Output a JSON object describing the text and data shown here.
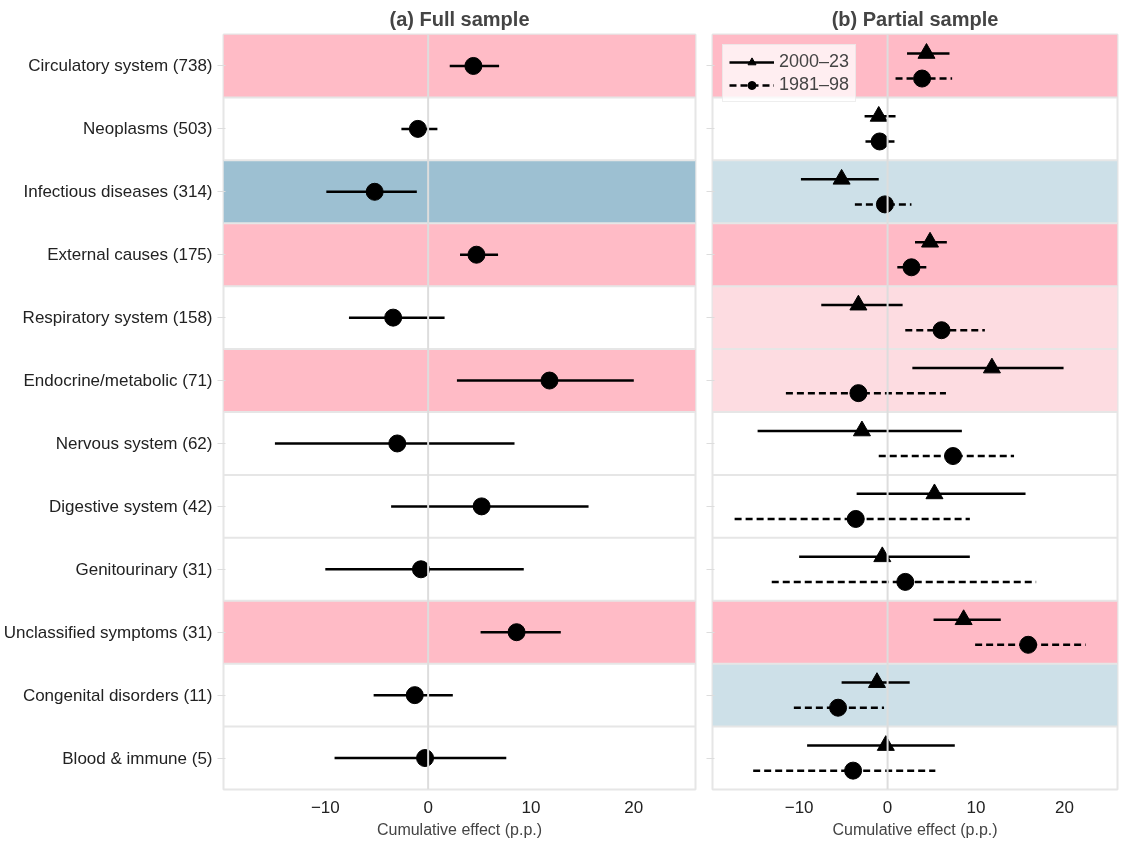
{
  "chart_data": [
    {
      "type": "scatter",
      "title": "(a) Full sample",
      "xlabel": "Cumulative effect (p.p.)",
      "orientation": "horizontal",
      "categories": [
        "Circulatory system (738)",
        "Neoplasms (503)",
        "Infectious diseases (314)",
        "External causes (175)",
        "Respiratory system (158)",
        "Endocrine/metabolic (71)",
        "Nervous system (62)",
        "Digestive system (42)",
        "Genitourinary (31)",
        "Unclassified symptoms (31)",
        "Congenital disorders (11)",
        "Blood & immune (5)"
      ],
      "series": [
        {
          "color": "#000000",
          "marker": "circle",
          "line_style": "solid",
          "values": [
            4.4,
            -1.0,
            -5.2,
            4.7,
            -3.4,
            11.8,
            -3.0,
            5.2,
            -0.7,
            8.6,
            -1.3,
            -0.3
          ],
          "errors": [
            [
              2.1,
              6.9
            ],
            [
              -2.6,
              0.9
            ],
            [
              -9.9,
              -1.1
            ],
            [
              3.1,
              6.8
            ],
            [
              -7.7,
              1.6
            ],
            [
              2.8,
              20.0
            ],
            [
              -14.9,
              8.4
            ],
            [
              -3.6,
              15.6
            ],
            [
              -10.0,
              9.3
            ],
            [
              5.1,
              12.9
            ],
            [
              -5.3,
              2.4
            ],
            [
              -9.1,
              7.6
            ]
          ]
        }
      ],
      "xlim": [
        -19.9,
        26
      ],
      "xticks": [
        {
          "value": -10,
          "label": "−10"
        },
        0,
        10,
        20
      ],
      "grid": "y",
      "legend": false,
      "ref_lines": [
        {
          "axis": "x",
          "value": 0,
          "color": "#dddddd"
        }
      ],
      "bands": [
        {
          "axis": "y",
          "from": "Circulatory system (738)",
          "to": "Circulatory system (738)",
          "color": "#ffbbc6"
        },
        {
          "axis": "y",
          "from": "Infectious diseases (314)",
          "to": "Infectious diseases (314)",
          "color": "#9dc0d2"
        },
        {
          "axis": "y",
          "from": "External causes (175)",
          "to": "External causes (175)",
          "color": "#ffbbc6"
        },
        {
          "axis": "y",
          "from": "Endocrine/metabolic (71)",
          "to": "Endocrine/metabolic (71)",
          "color": "#ffbbc6"
        },
        {
          "axis": "y",
          "from": "Unclassified symptoms (31)",
          "to": "Unclassified symptoms (31)",
          "color": "#ffbbc6"
        }
      ]
    },
    {
      "type": "scatter",
      "title": "(b) Partial sample",
      "xlabel": "Cumulative effect (p.p.)",
      "orientation": "horizontal",
      "tick_labels": "x",
      "categories": [
        "Circulatory system (738)",
        "Neoplasms (503)",
        "Infectious diseases (314)",
        "External causes (175)",
        "Respiratory system (158)",
        "Endocrine/metabolic (71)",
        "Nervous system (62)",
        "Digestive system (42)",
        "Genitourinary (31)",
        "Unclassified symptoms (31)",
        "Congenital disorders (11)",
        "Blood & immune (5)"
      ],
      "series": [
        {
          "name": "2000–23",
          "color": "#000000",
          "marker": "triangle",
          "line_style": "solid",
          "values": [
            4.4,
            -1.0,
            -5.2,
            4.8,
            -3.3,
            11.8,
            -2.9,
            5.3,
            -0.6,
            8.6,
            -1.2,
            -0.2
          ],
          "errors": [
            [
              2.2,
              7.0
            ],
            [
              -2.6,
              0.9
            ],
            [
              -9.8,
              -1.0
            ],
            [
              3.1,
              6.7
            ],
            [
              -7.5,
              1.7
            ],
            [
              2.8,
              19.9
            ],
            [
              -14.7,
              8.4
            ],
            [
              -3.5,
              15.6
            ],
            [
              -10.0,
              9.3
            ],
            [
              5.2,
              12.8
            ],
            [
              -5.2,
              2.5
            ],
            [
              -9.1,
              7.6
            ]
          ]
        },
        {
          "name": "1981–98",
          "color": "#000000",
          "marker": "circle",
          "line_style": "dashed",
          "values": [
            3.9,
            -0.9,
            -0.3,
            2.7,
            6.1,
            -3.3,
            7.4,
            -3.6,
            2.0,
            15.9,
            -5.6,
            -3.9
          ],
          "errors": [
            [
              0.9,
              7.3
            ],
            [
              -2.5,
              0.9
            ],
            [
              -3.7,
              2.7
            ],
            [
              1.1,
              4.4
            ],
            [
              2.0,
              11.0
            ],
            [
              -11.5,
              6.6
            ],
            [
              -1.0,
              14.3
            ],
            [
              -17.3,
              9.3
            ],
            [
              -13.1,
              16.8
            ],
            [
              9.9,
              22.4
            ],
            [
              -10.6,
              -0.4
            ],
            [
              -15.2,
              5.4
            ]
          ]
        }
      ],
      "xlim": [
        -19.8,
        26
      ],
      "xticks": [
        {
          "value": -10,
          "label": "−10"
        },
        0,
        10,
        20
      ],
      "grid": "y",
      "legend": "top left",
      "ref_lines": [
        {
          "axis": "x",
          "value": 0,
          "color": "#dddddd"
        }
      ],
      "bands": [
        {
          "axis": "y",
          "from": "Circulatory system (738)",
          "to": "Circulatory system (738)",
          "color": "#ffbac6"
        },
        {
          "axis": "y",
          "from": "Infectious diseases (314)",
          "to": "Infectious diseases (314)",
          "color": "#cde0e8"
        },
        {
          "axis": "y",
          "from": "External causes (175)",
          "to": "External causes (175)",
          "color": "#ffbac6"
        },
        {
          "axis": "y",
          "from": "Respiratory system (158)",
          "to": "Respiratory system (158)",
          "color": "#fddce1"
        },
        {
          "axis": "y",
          "from": "Endocrine/metabolic (71)",
          "to": "Endocrine/metabolic (71)",
          "color": "#fddce1"
        },
        {
          "axis": "y",
          "from": "Unclassified symptoms (31)",
          "to": "Unclassified symptoms (31)",
          "color": "#ffbac6"
        },
        {
          "axis": "y",
          "from": "Congenital disorders (11)",
          "to": "Congenital disorders (11)",
          "color": "#cde0e8"
        }
      ]
    }
  ]
}
